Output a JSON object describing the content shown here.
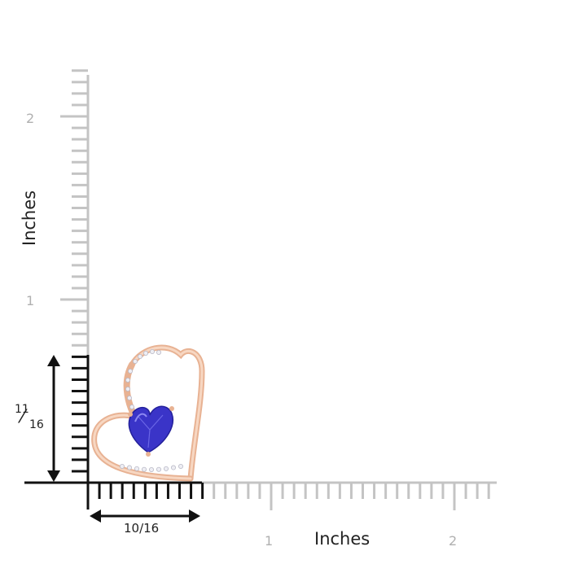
{
  "axes": {
    "x_title": "Inches",
    "y_title": "Inches",
    "x_tick_labels": [
      "1",
      "2"
    ],
    "y_tick_labels": [
      "1",
      "2"
    ]
  },
  "dimensions": {
    "width_label": "10/16",
    "height_numerator": "11",
    "height_denominator": "16"
  },
  "colors": {
    "ruler_gray": "#c4c4c4",
    "ruler_black": "#111111",
    "rose_gold": "#f1c3a6",
    "tanzanite": "#3a34c8",
    "diamond": "#e8e8ee"
  },
  "product": {
    "icon": "heart-pendant-icon"
  }
}
